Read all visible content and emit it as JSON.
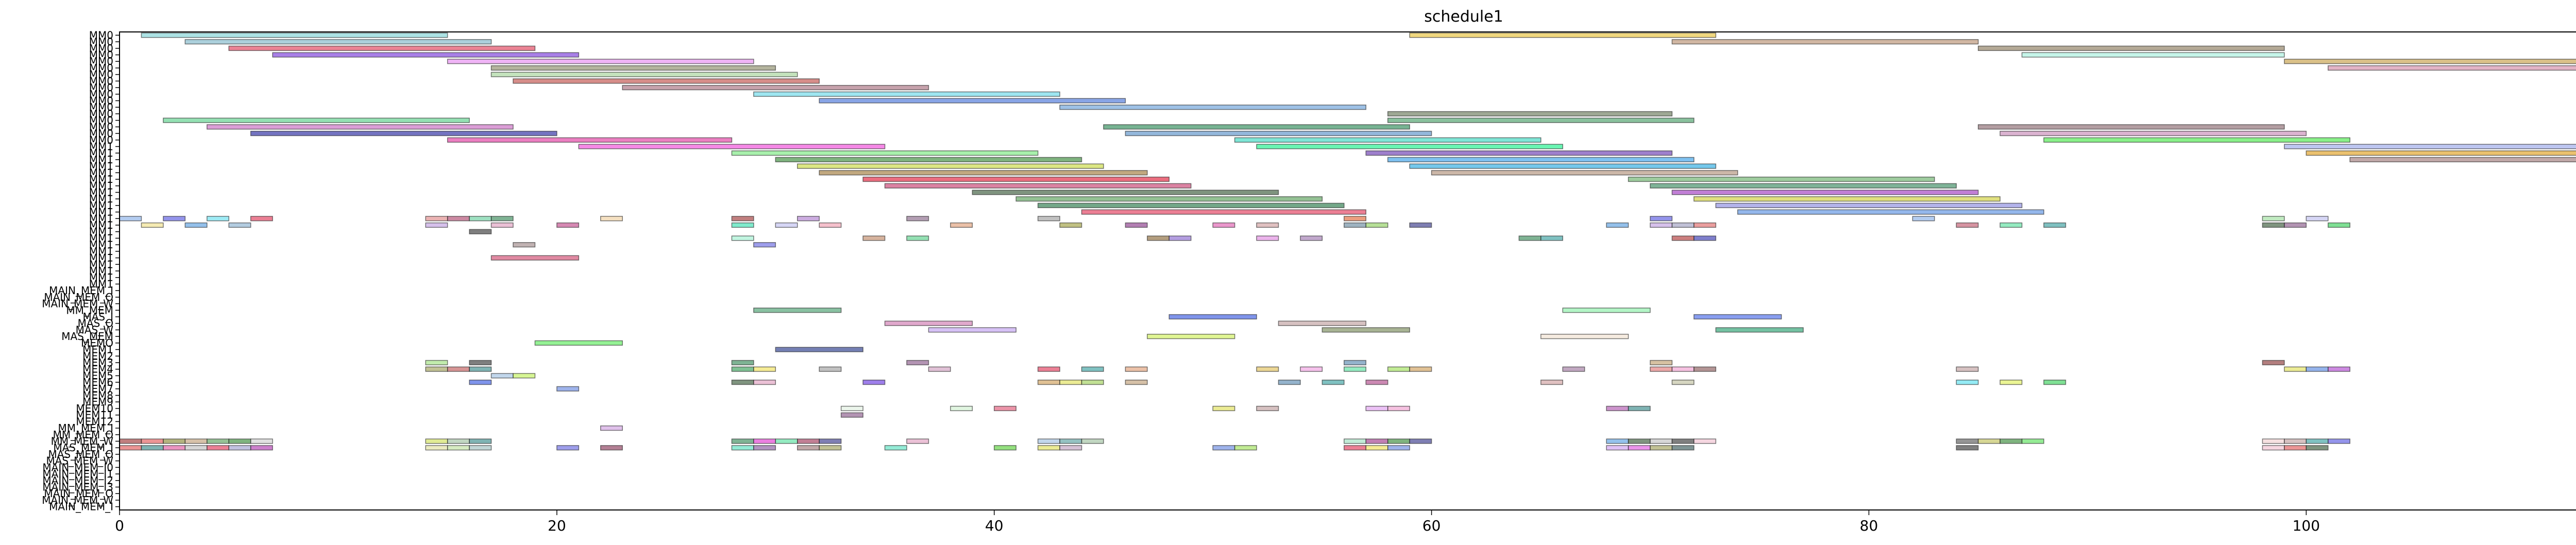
{
  "chart_data": {
    "type": "gantt",
    "title": "schedule1",
    "xlabel": "",
    "ylabel": "",
    "xlim": [
      0,
      115
    ],
    "xticks": [
      0,
      20,
      40,
      60,
      80,
      100
    ],
    "grid": false,
    "rows": [
      "MM0",
      "MM0",
      "MM0",
      "MM0",
      "MM0",
      "MM0",
      "MM0",
      "MM0",
      "MM0",
      "MM0",
      "MM0",
      "MM0",
      "MM0",
      "MM0",
      "MM0",
      "MM0",
      "MM0",
      "MM1",
      "MM1",
      "MM1",
      "MM1",
      "MM1",
      "MM1",
      "MM1",
      "MM1",
      "MM1",
      "MM1",
      "MM1",
      "MM1",
      "MM1",
      "MM1",
      "MM1",
      "MM1",
      "MM1",
      "MM1",
      "MM1",
      "MM1",
      "MM1",
      "MM1",
      "MAIN_MEM_I",
      "MAIN_MEM_O",
      "MAIN_MEM_W",
      "MM_MEM",
      "MAS_I",
      "MAS_O",
      "MAS_W",
      "MAS_MEM",
      "MEMO",
      "MEM1",
      "MEM2",
      "MEM3",
      "MEM4",
      "MEM5",
      "MEM6",
      "MEM7",
      "MEM8",
      "MEM9",
      "MEM10",
      "MEM11",
      "MEM12",
      "MM_MEM_I",
      "MM_MEM_O",
      "MM_MEM_W",
      "MAS_MEM_I",
      "MAS_MEM_O",
      "MAS_MEM_W",
      "MAIN_MEM_I0",
      "MAIN_MEM_I1",
      "MAIN_MEM_I2",
      "MAIN_MEM_I3",
      "MAIN_MEM_O",
      "MAIN_MEM_W",
      "MAIN_MEM_I"
    ],
    "visible_row_labels": [
      "MM0",
      "MM0",
      "MM0",
      "MM0",
      "MM0",
      "MM0",
      "MM0",
      "MM0",
      "MM0",
      "MM0",
      "MM0",
      "MM0",
      "MM0",
      "MM0",
      "MM0",
      "MM0",
      "MM0",
      "MM1",
      "MM1",
      "MM1",
      "MM1",
      "MM1",
      "MM1",
      "MM1",
      "MM1",
      "MM1",
      "MM1",
      "MM1",
      "MM1",
      "MM1",
      "MM1",
      "MM1",
      "MM1",
      "MM1",
      "MM1",
      "MM1",
      "MM1",
      "MM1",
      "MM1",
      "MM_MEM",
      "MAS_I",
      "MAS_O",
      "MAS_W",
      "MAS_MEM",
      "MEMO",
      "MEM1",
      "MEM2",
      "MEM3",
      "MEM4",
      "MEM5",
      "MEM6",
      "MEM7",
      "MEM8",
      "MEM9",
      "MEM10",
      "MEM11",
      "MEM12",
      "MM_MEM_I",
      "MM_MEM_O",
      "MM_MEM_W",
      "MAS_MEM_I",
      "MAS_MEM_O",
      "MAS_MEM_W",
      "MAIN_MEM_I",
      "MAIN_MEM_O",
      "MAIN_MEM_W",
      "MAIN_MEM_I1"
    ],
    "tasks": [
      {
        "row": 0,
        "start": 59,
        "end": 73,
        "color": "#e8c23a"
      },
      {
        "row": 0,
        "start": 1,
        "end": 15,
        "color": "#7fd3d6"
      },
      {
        "row": 1,
        "start": 71,
        "end": 85,
        "color": "#b99072"
      },
      {
        "row": 1,
        "start": 3,
        "end": 17,
        "color": "#7fb7c9"
      },
      {
        "row": 2,
        "start": 85,
        "end": 99,
        "color": "#8c7b5e"
      },
      {
        "row": 2,
        "start": 5,
        "end": 19,
        "color": "#e0405a"
      },
      {
        "row": 3,
        "start": 87,
        "end": 99,
        "color": "#a8f0dd"
      },
      {
        "row": 3,
        "start": 7,
        "end": 21,
        "color": "#7a3ad9"
      },
      {
        "row": 4,
        "start": 99,
        "end": 113,
        "color": "#c6a04a"
      },
      {
        "row": 4,
        "start": 15,
        "end": 29,
        "color": "#e68cf0"
      },
      {
        "row": 5,
        "start": 101,
        "end": 115,
        "color": "#d48ca8"
      },
      {
        "row": 5,
        "start": 17,
        "end": 30,
        "color": "#8c8c6a"
      },
      {
        "row": 6,
        "start": 17,
        "end": 31,
        "color": "#a4d49a"
      },
      {
        "row": 7,
        "start": 18,
        "end": 32,
        "color": "#c0504a"
      },
      {
        "row": 8,
        "start": 23,
        "end": 37,
        "color": "#a87080"
      },
      {
        "row": 9,
        "start": 29,
        "end": 43,
        "color": "#6ad8e8"
      },
      {
        "row": 10,
        "start": 32,
        "end": 46,
        "color": "#4a74d8"
      },
      {
        "row": 11,
        "start": 43,
        "end": 57,
        "color": "#6aa0d8"
      },
      {
        "row": 12,
        "start": 58,
        "end": 71,
        "color": "#6a7a5a"
      },
      {
        "row": 13,
        "start": 58,
        "end": 72,
        "color": "#4aa068"
      },
      {
        "row": 13,
        "start": 2,
        "end": 16,
        "color": "#5ad08a"
      },
      {
        "row": 14,
        "start": 45,
        "end": 59,
        "color": "#2e8a58"
      },
      {
        "row": 14,
        "start": 85,
        "end": 99,
        "color": "#8a6a70"
      },
      {
        "row": 14,
        "start": 4,
        "end": 18,
        "color": "#c86ac0"
      },
      {
        "row": 15,
        "start": 46,
        "end": 60,
        "color": "#5a90c8"
      },
      {
        "row": 15,
        "start": 86,
        "end": 100,
        "color": "#c88ab8"
      },
      {
        "row": 15,
        "start": 6,
        "end": 20,
        "color": "#2a2aa0"
      },
      {
        "row": 16,
        "start": 88,
        "end": 102,
        "color": "#4ae84a"
      },
      {
        "row": 16,
        "start": 51,
        "end": 65,
        "color": "#3ad8c0"
      },
      {
        "row": 16,
        "start": 15,
        "end": 28,
        "color": "#e03aa0"
      },
      {
        "row": 17,
        "start": 52,
        "end": 66,
        "color": "#1aef8a"
      },
      {
        "row": 17,
        "start": 99,
        "end": 113,
        "color": "#9aa8ea"
      },
      {
        "row": 17,
        "start": 21,
        "end": 35,
        "color": "#f04ad8"
      },
      {
        "row": 18,
        "start": 57,
        "end": 71,
        "color": "#6a3ab0"
      },
      {
        "row": 18,
        "start": 100,
        "end": 114,
        "color": "#e0a020"
      },
      {
        "row": 18,
        "start": 28,
        "end": 42,
        "color": "#7ae880"
      },
      {
        "row": 19,
        "start": 58,
        "end": 72,
        "color": "#3aa0e8"
      },
      {
        "row": 19,
        "start": 102,
        "end": 116,
        "color": "#a07a7a"
      },
      {
        "row": 19,
        "start": 30,
        "end": 44,
        "color": "#3a8a3a"
      },
      {
        "row": 20,
        "start": 59,
        "end": 73,
        "color": "#2aaae0"
      },
      {
        "row": 20,
        "start": 31,
        "end": 45,
        "color": "#c8d840"
      },
      {
        "row": 21,
        "start": 60,
        "end": 74,
        "color": "#b0907a"
      },
      {
        "row": 21,
        "start": 32,
        "end": 47,
        "color": "#a07a3a"
      },
      {
        "row": 22,
        "start": 69,
        "end": 83,
        "color": "#6ab06a"
      },
      {
        "row": 22,
        "start": 34,
        "end": 48,
        "color": "#e0203a"
      },
      {
        "row": 23,
        "start": 70,
        "end": 84,
        "color": "#3a8a60"
      },
      {
        "row": 23,
        "start": 35,
        "end": 49,
        "color": "#c84070"
      },
      {
        "row": 24,
        "start": 71,
        "end": 85,
        "color": "#a03ac0"
      },
      {
        "row": 24,
        "start": 39,
        "end": 53,
        "color": "#3a5a3a"
      },
      {
        "row": 25,
        "start": 72,
        "end": 86,
        "color": "#d0d03a"
      },
      {
        "row": 25,
        "start": 41,
        "end": 55,
        "color": "#5aa05a"
      },
      {
        "row": 26,
        "start": 73,
        "end": 87,
        "color": "#8a8ae0"
      },
      {
        "row": 26,
        "start": 42,
        "end": 56,
        "color": "#2a7a4a"
      },
      {
        "row": 27,
        "start": 74,
        "end": 88,
        "color": "#5a90e0"
      },
      {
        "row": 27,
        "start": 44,
        "end": 57,
        "color": "#e03a5a"
      }
    ],
    "scatter_blocks": [
      {
        "row": 28,
        "xs": [
          0,
          2,
          4,
          6
        ],
        "colors": [
          "#8ab0e8",
          "#5a5ae0",
          "#6ae0f0",
          "#e03a5a"
        ]
      },
      {
        "row": 28,
        "xs": [
          14,
          15,
          16,
          17,
          22
        ],
        "colors": [
          "#e08a8a",
          "#b04a70",
          "#6ad0a0",
          "#3a8a5a",
          "#f0d0a0"
        ]
      },
      {
        "row": 28,
        "xs": [
          28,
          31,
          36,
          42,
          56,
          70,
          82,
          98,
          100
        ],
        "colors": [
          "#a03a3a",
          "#b080d0",
          "#8a6a8a",
          "#a0a0a0",
          "#e06a3a",
          "#5a5ae0",
          "#8ab0e8",
          "#a0e0a0",
          "#c0c0f0"
        ]
      },
      {
        "row": 29,
        "xs": [
          1,
          3,
          5,
          14,
          17,
          20,
          28,
          30,
          32,
          38,
          43,
          46,
          50,
          52,
          56,
          57,
          59,
          68,
          70,
          71,
          72,
          84,
          86,
          88,
          98,
          99,
          101
        ],
        "colors": [
          "#f0e08a",
          "#5aa0e0",
          "#8ab0d0",
          "#c0a0e0",
          "#e0a0c0",
          "#c04a8a",
          "#3ae0b0",
          "#c0c0f0",
          "#f0a0b0",
          "#e0a07a",
          "#a0a040",
          "#8a3a8a",
          "#e060b0",
          "#d0a0a0",
          "#6a8aa0",
          "#90d060",
          "#3a3a8a",
          "#5aa0e0",
          "#c0a0e0",
          "#a0a0c0",
          "#e06a6a",
          "#c05a70",
          "#5ae0a0",
          "#3aa0a0",
          "#3a5a3a",
          "#8a5a8a",
          "#3ad05a"
        ]
      },
      {
        "row": 30,
        "xs": [
          16
        ],
        "colors": [
          "#3a3a3a"
        ]
      },
      {
        "row": 31,
        "xs": [
          28,
          34,
          36,
          47,
          48,
          52,
          54,
          64,
          65,
          71,
          72
        ],
        "colors": [
          "#a0f0d0",
          "#c08a6a",
          "#5ad08a",
          "#8a6a3a",
          "#8a6ad0",
          "#e08ae0",
          "#a07ab0",
          "#3a8a5a",
          "#3aa0a0",
          "#b03a3a",
          "#3a3ab0"
        ]
      },
      {
        "row": 32,
        "xs": [
          18,
          29
        ],
        "colors": [
          "#a08a8a",
          "#6a6ae0"
        ]
      },
      {
        "row": 34,
        "start": 17,
        "end": 21,
        "color": "#d04a70"
      }
    ],
    "lower_tasks": [
      {
        "row": 42,
        "start": 29,
        "end": 33,
        "color": "#4aa070"
      },
      {
        "row": 42,
        "start": 66,
        "end": 70,
        "color": "#8af0a8"
      },
      {
        "row": 43,
        "start": 48,
        "end": 52,
        "color": "#3a5ae0"
      },
      {
        "row": 43,
        "start": 72,
        "end": 76,
        "color": "#4a6ae8"
      },
      {
        "row": 44,
        "start": 35,
        "end": 39,
        "color": "#d07ab0"
      },
      {
        "row": 44,
        "start": 53,
        "end": 57,
        "color": "#c0a0a0"
      },
      {
        "row": 45,
        "start": 37,
        "end": 41,
        "color": "#c0a0f0"
      },
      {
        "row": 45,
        "start": 55,
        "end": 59,
        "color": "#7a8a5a"
      },
      {
        "row": 45,
        "start": 73,
        "end": 77,
        "color": "#2aa070"
      },
      {
        "row": 46,
        "start": 47,
        "end": 51,
        "color": "#d0f05a"
      },
      {
        "row": 46,
        "start": 65,
        "end": 69,
        "color": "#f0e0d0"
      },
      {
        "row": 47,
        "start": 19,
        "end": 23,
        "color": "#5aea5a"
      },
      {
        "row": 48,
        "start": 30,
        "end": 34,
        "color": "#2a3a8a"
      }
    ],
    "bottom_blocks": [
      {
        "row": 50,
        "xs": [
          14,
          16,
          28,
          36,
          56,
          70,
          98
        ],
        "colors": [
          "#a0e080",
          "#3a3a3a",
          "#3a8a5a",
          "#8a5a8a",
          "#5a8ab0",
          "#c0a070",
          "#8a3a3a"
        ]
      },
      {
        "row": 51,
        "xs": [
          14,
          15,
          16,
          28,
          29,
          32,
          37,
          42,
          44,
          46,
          52,
          54,
          56,
          58,
          59,
          66,
          70,
          71,
          72,
          84,
          99,
          100,
          101
        ],
        "colors": [
          "#a0a05a",
          "#c05a5a",
          "#3a8a8a",
          "#3aa05a",
          "#f0e05a",
          "#a0a0a0",
          "#d0a0c0",
          "#e03a5a",
          "#3aa0a0",
          "#e0a07a",
          "#e0c05a",
          "#f0a0e0",
          "#5ae0a0",
          "#a0e05a",
          "#d0a05a",
          "#a07aa0",
          "#e07a7a",
          "#f0a0d0",
          "#8a5a5a",
          "#c0a0a0",
          "#e0e05a",
          "#5a8ae0",
          "#b04ad0"
        ]
      },
      {
        "row": 52,
        "xs": [
          17,
          18
        ],
        "colors": [
          "#a0c0e0",
          "#c0f05a"
        ]
      },
      {
        "row": 53,
        "xs": [
          16,
          28,
          29,
          34,
          42,
          43,
          44,
          46,
          53,
          55,
          57,
          65,
          71,
          84,
          86,
          88
        ],
        "colors": [
          "#3a5ae0",
          "#3a5a3a",
          "#e0a0c0",
          "#6a3ae0",
          "#d0a05a",
          "#e0e05a",
          "#a0d05a",
          "#c0a07a",
          "#5a8ab0",
          "#3aa0a0",
          "#b04a8a",
          "#d0a0a0",
          "#c0c0a0",
          "#5ae0f0",
          "#e0f05a",
          "#3ad05a"
        ]
      },
      {
        "row": 54,
        "xs": [
          20
        ],
        "colors": [
          "#6a8ae0"
        ]
      },
      {
        "row": 57,
        "xs": [
          33,
          38,
          40,
          50,
          52,
          57,
          58,
          68,
          69
        ],
        "colors": [
          "#e0f0e0",
          "#d0f0d0",
          "#e05a7a",
          "#e0e05a",
          "#c0a0a0",
          "#e0a0f0",
          "#f0a0d0",
          "#b05ab0",
          "#3a8a8a"
        ]
      },
      {
        "row": 58,
        "xs": [
          33
        ],
        "colors": [
          "#8a5a8a"
        ]
      },
      {
        "row": 60,
        "xs": [
          22
        ],
        "colors": [
          "#d0a0e0"
        ]
      },
      {
        "row": 62,
        "xs": [
          0,
          1,
          2,
          3,
          4,
          5,
          6,
          14,
          15,
          16,
          28,
          29,
          30,
          31,
          32,
          36,
          42,
          43,
          44,
          56,
          57,
          58,
          59,
          68,
          69,
          70,
          71,
          72,
          84,
          85,
          86,
          87,
          98,
          99,
          100,
          101
        ],
        "colors": [
          "#a03a3a",
          "#e05a5a",
          "#8a8a3a",
          "#c0a07a",
          "#5aa05a",
          "#3a8a3a",
          "#d0d0d0",
          "#d0e05a",
          "#a0c0a0",
          "#3a8a8a",
          "#3a8a5a",
          "#e03ad0",
          "#5ae0a0",
          "#a03a5a",
          "#3a3a8a",
          "#e0a0c0",
          "#a0c0e0",
          "#5aa0a0",
          "#a0c0a0",
          "#a0e0c0",
          "#a03a8a",
          "#3a8a3a",
          "#3a3a8a",
          "#5aa0e0",
          "#3a5a3a",
          "#c0c0c0",
          "#3a3a3a",
          "#f0c0d0",
          "#5a5a5a",
          "#c0c05a",
          "#3a8a3a",
          "#5ae05a",
          "#f0d0d0",
          "#c0a0a0",
          "#3aa0a0",
          "#5a5ae0"
        ]
      },
      {
        "row": 63,
        "xs": [
          0,
          1,
          2,
          3,
          4,
          5,
          6,
          14,
          15,
          16,
          20,
          22,
          28,
          29,
          31,
          32,
          35,
          40,
          42,
          43,
          50,
          51,
          56,
          57,
          58,
          68,
          69,
          70,
          71,
          84,
          98,
          99,
          100
        ],
        "colors": [
          "#e05a5a",
          "#3a8a8a",
          "#e05aa0",
          "#c0c0c0",
          "#e03a5a",
          "#a0a0d0",
          "#b03ab0",
          "#e0e0a0",
          "#c0e0a0",
          "#a0c0c0",
          "#6a6ae0",
          "#8a3a5a",
          "#5ae0c0",
          "#8a5aa0",
          "#a07a7a",
          "#a0a05a",
          "#5ae0c0",
          "#5ad03a",
          "#e0e05a",
          "#c0a0c0",
          "#6a8ae0",
          "#a0e05a",
          "#e03a5a",
          "#f0e05a",
          "#6a8ae0",
          "#d0a0f0",
          "#e05ae0",
          "#a0a05a",
          "#3a5a5a",
          "#3a3a3a",
          "#f0c0d0",
          "#e05a5a",
          "#3a5a3a"
        ]
      }
    ]
  }
}
